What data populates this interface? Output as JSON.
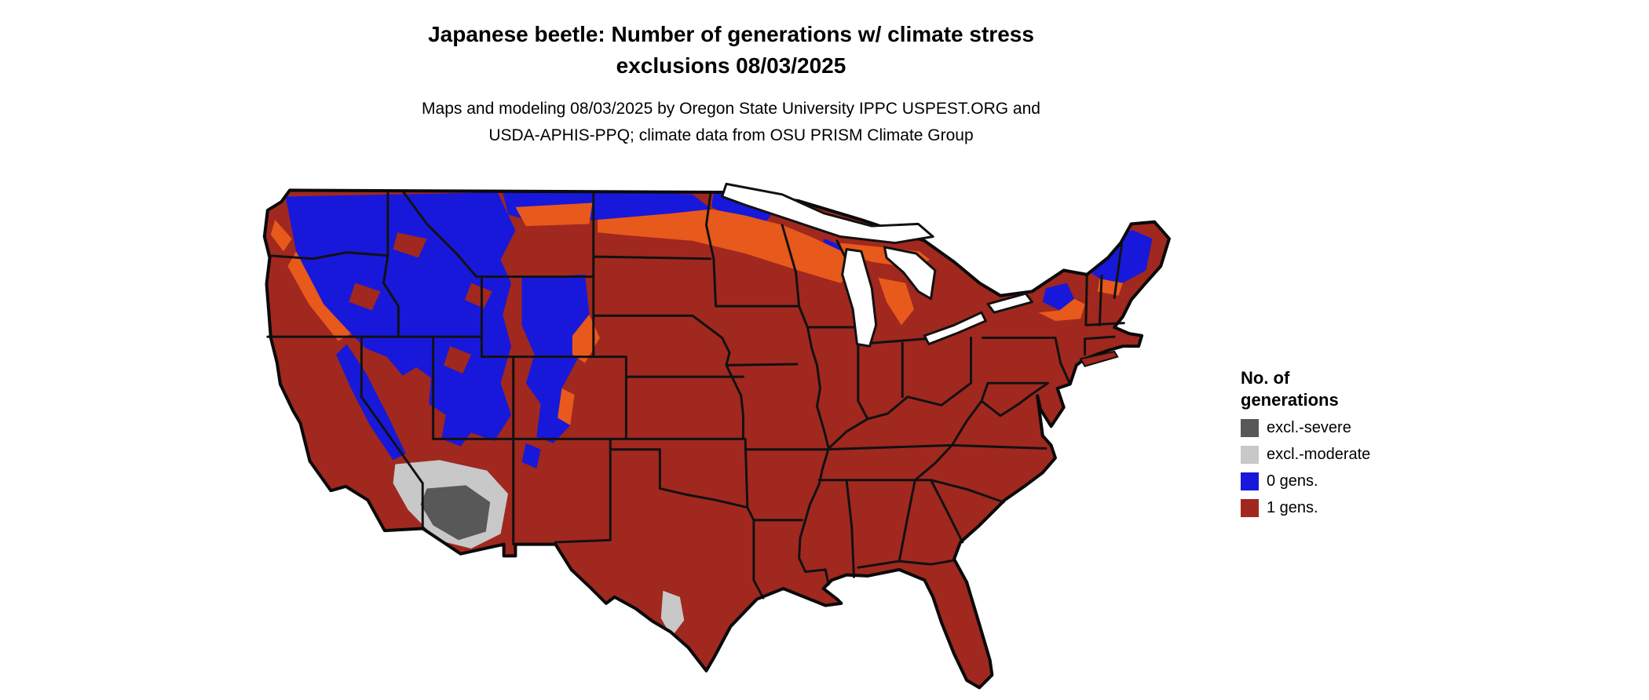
{
  "title": {
    "line1": "Japanese beetle: Number of generations w/ climate stress",
    "line2": "exclusions 08/03/2025"
  },
  "subtitle": {
    "line1": "Maps and modeling 08/03/2025 by Oregon State University IPPC USPEST.ORG and",
    "line2": "USDA-APHIS-PPQ; climate data from OSU PRISM Climate Group"
  },
  "legend": {
    "title_line1": "No. of",
    "title_line2": "generations",
    "items": [
      {
        "label": "excl.-severe",
        "color_key": "excl_severe"
      },
      {
        "label": "excl.-moderate",
        "color_key": "excl_moderate"
      },
      {
        "label": "0 gens.",
        "color_key": "gen0"
      },
      {
        "label": "1 gens.",
        "color_key": "gen1"
      }
    ]
  },
  "colors": {
    "gen1": "#A0281E",
    "gen0": "#1818DA",
    "transition_orange": "#E8591C",
    "excl_moderate": "#C8C8C8",
    "excl_severe": "#585858",
    "water": "#FFFFFF",
    "border": "#111111"
  },
  "map": {
    "description": "Contiguous United States choropleth of Japanese beetle generations with climate stress exclusions",
    "date": "08/03/2025",
    "categories_shown": [
      "excl.-severe",
      "excl.-moderate",
      "0 gens.",
      "1 gens."
    ]
  }
}
